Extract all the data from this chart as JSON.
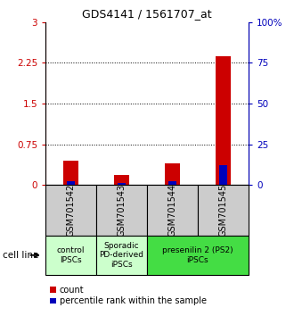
{
  "title": "GDS4141 / 1561707_at",
  "samples": [
    "GSM701542",
    "GSM701543",
    "GSM701544",
    "GSM701545"
  ],
  "count_values": [
    0.45,
    0.18,
    0.4,
    2.37
  ],
  "percentile_values": [
    2.0,
    1.2,
    2.0,
    12.0
  ],
  "ylim_left": [
    0,
    3
  ],
  "ylim_right": [
    0,
    100
  ],
  "yticks_left": [
    0,
    0.75,
    1.5,
    2.25,
    3
  ],
  "yticks_right": [
    0,
    25,
    50,
    75,
    100
  ],
  "ytick_labels_left": [
    "0",
    "0.75",
    "1.5",
    "2.25",
    "3"
  ],
  "ytick_labels_right": [
    "0",
    "25",
    "50",
    "75",
    "100%"
  ],
  "count_bar_width": 0.3,
  "percentile_bar_width": 0.15,
  "count_color": "#cc0000",
  "percentile_color": "#0000bb",
  "groups": [
    {
      "start": 0,
      "end": 0,
      "label": "control\nIPSCs",
      "color": "#ccffcc"
    },
    {
      "start": 1,
      "end": 1,
      "label": "Sporadic\nPD-derived\niPSCs",
      "color": "#ccffcc"
    },
    {
      "start": 2,
      "end": 3,
      "label": "presenilin 2 (PS2)\niPSCs",
      "color": "#44dd44"
    }
  ],
  "cell_line_label": "cell line",
  "legend_count": "count",
  "legend_percentile": "percentile rank within the sample",
  "bg_color": "#ffffff",
  "sample_box_color": "#cccccc",
  "title_fontsize": 9
}
